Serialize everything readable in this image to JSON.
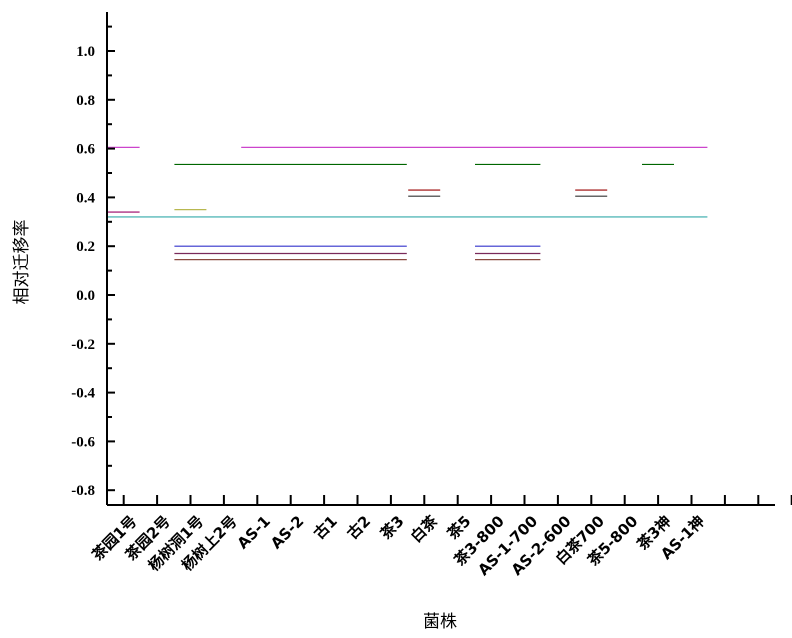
{
  "chart_data": {
    "type": "band_pattern",
    "xlabel": "菌株",
    "ylabel": "相对迁移率",
    "ylim": [
      -0.85,
      1.15
    ],
    "yticks": [
      -0.8,
      -0.6,
      -0.4,
      -0.2,
      0.0,
      0.2,
      0.4,
      0.6,
      0.8,
      1.0
    ],
    "ytick_labels": [
      "-0.8",
      "-0.6",
      "-0.4",
      "-0.2",
      "0.0",
      "0.2",
      "0.4",
      "0.6",
      "0.8",
      "1.0"
    ],
    "categories": [
      "茶园1号",
      "茶园2号",
      "杨树洞1号",
      "杨树上2号",
      "AS-1",
      "AS-2",
      "古1",
      "古2",
      "茶3",
      "白茶",
      "茶5",
      "茶3-800",
      "AS-1-700",
      "AS-2-600",
      "白茶700",
      "茶5-800",
      "茶3神",
      "AS-1神"
    ],
    "n_slots": 20,
    "bands": [
      {
        "y": 0.605,
        "from": 0,
        "to": 0,
        "color": "#cc44cc"
      },
      {
        "y": 0.34,
        "from": 0,
        "to": 0,
        "color": "#990066"
      },
      {
        "y": 0.32,
        "from": 0,
        "to": 17,
        "color": "#33aaaa"
      },
      {
        "y": 0.35,
        "from": 2,
        "to": 2,
        "color": "#b8b850"
      },
      {
        "y": 0.535,
        "from": 2,
        "to": 8,
        "color": "#006600"
      },
      {
        "y": 0.2,
        "from": 2,
        "to": 8,
        "color": "#3333cc"
      },
      {
        "y": 0.17,
        "from": 2,
        "to": 8,
        "color": "#7a2a5a"
      },
      {
        "y": 0.145,
        "from": 2,
        "to": 8,
        "color": "#8a4a40"
      },
      {
        "y": 0.605,
        "from": 4,
        "to": 17,
        "color": "#cc44cc"
      },
      {
        "y": 0.43,
        "from": 9,
        "to": 9,
        "color": "#990000"
      },
      {
        "y": 0.405,
        "from": 9,
        "to": 9,
        "color": "#333333"
      },
      {
        "y": 0.535,
        "from": 11,
        "to": 12,
        "color": "#006600"
      },
      {
        "y": 0.2,
        "from": 11,
        "to": 12,
        "color": "#3333cc"
      },
      {
        "y": 0.17,
        "from": 11,
        "to": 12,
        "color": "#7a2a5a"
      },
      {
        "y": 0.145,
        "from": 11,
        "to": 12,
        "color": "#8a4a40"
      },
      {
        "y": 0.43,
        "from": 14,
        "to": 14,
        "color": "#990000"
      },
      {
        "y": 0.405,
        "from": 14,
        "to": 14,
        "color": "#333333"
      },
      {
        "y": 0.535,
        "from": 16,
        "to": 16,
        "color": "#006600"
      }
    ]
  }
}
